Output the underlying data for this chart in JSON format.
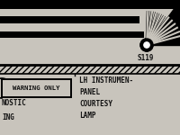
{
  "bg_color": "#c8c4bc",
  "fig_width": 2.0,
  "fig_height": 1.5,
  "dpi": 100,
  "s119_label": "S119",
  "warning_only_label": "WARNING ONLY",
  "lh_label_lines": [
    "LH INSTRUMEN-",
    "PANEL",
    "COURTESY",
    "LAMP"
  ],
  "nostic_label": "NOSTIC",
  "ing_label": "ING",
  "text_color": "#111111",
  "line_color": "#111111",
  "black": "#000000",
  "white": "#ffffff"
}
